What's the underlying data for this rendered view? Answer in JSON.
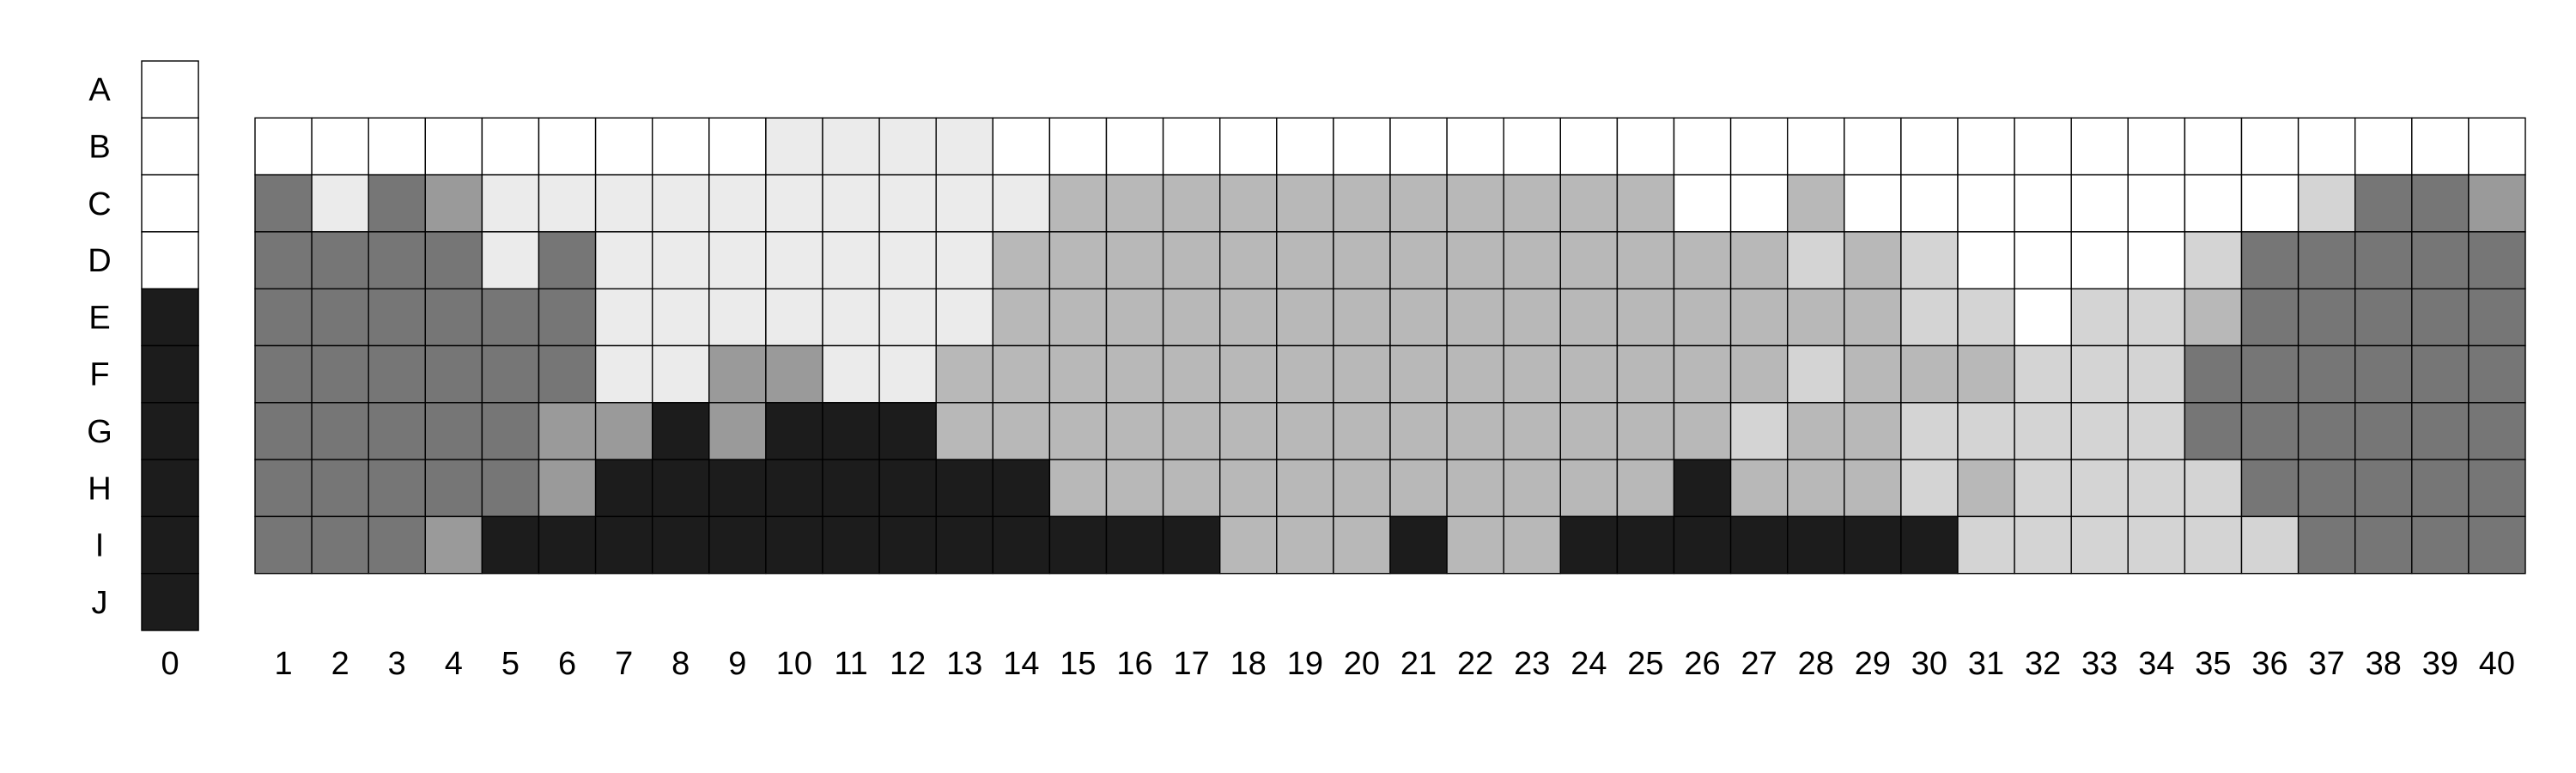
{
  "chart_data": {
    "type": "heatmap",
    "rows": [
      "A",
      "B",
      "C",
      "D",
      "E",
      "F",
      "G",
      "H",
      "I",
      "J"
    ],
    "columns": [
      "0",
      "1",
      "2",
      "3",
      "4",
      "5",
      "6",
      "7",
      "8",
      "9",
      "10",
      "11",
      "12",
      "13",
      "14",
      "15",
      "16",
      "17",
      "18",
      "19",
      "20",
      "21",
      "22",
      "23",
      "24",
      "25",
      "26",
      "27",
      "28",
      "29",
      "30",
      "31",
      "32",
      "33",
      "34",
      "35",
      "36",
      "37",
      "38",
      "39",
      "40"
    ],
    "palette": [
      "#ffffff",
      "#ebebeb",
      "#d4d4d4",
      "#b8b8b8",
      "#9a9a9a",
      "#767676",
      "#1c1c1c"
    ],
    "values": [
      [
        0,
        null,
        null,
        null,
        null,
        null,
        null,
        null,
        null,
        null,
        null,
        null,
        null,
        null,
        null,
        null,
        null,
        null,
        null,
        null,
        null,
        null,
        null,
        null,
        null,
        null,
        null,
        null,
        null,
        null,
        null,
        null,
        null,
        null,
        null,
        null,
        null,
        null,
        null,
        null,
        null
      ],
      [
        0,
        0,
        0,
        0,
        0,
        0,
        0,
        0,
        0,
        0,
        1,
        1,
        1,
        1,
        0,
        0,
        0,
        0,
        0,
        0,
        0,
        0,
        0,
        0,
        0,
        0,
        0,
        0,
        0,
        0,
        0,
        0,
        0,
        0,
        0,
        0,
        0,
        0,
        0,
        0,
        0
      ],
      [
        0,
        5,
        1,
        5,
        4,
        1,
        1,
        1,
        1,
        1,
        1,
        1,
        1,
        1,
        1,
        3,
        3,
        3,
        3,
        3,
        3,
        3,
        3,
        3,
        3,
        3,
        0,
        0,
        3,
        0,
        0,
        0,
        0,
        0,
        0,
        0,
        0,
        2,
        5,
        5,
        4
      ],
      [
        0,
        5,
        5,
        5,
        5,
        1,
        5,
        1,
        1,
        1,
        1,
        1,
        1,
        1,
        3,
        3,
        3,
        3,
        3,
        3,
        3,
        3,
        3,
        3,
        3,
        3,
        3,
        3,
        2,
        3,
        2,
        0,
        0,
        0,
        0,
        2,
        5,
        5,
        5,
        5,
        5
      ],
      [
        6,
        5,
        5,
        5,
        5,
        5,
        5,
        1,
        1,
        1,
        1,
        1,
        1,
        1,
        3,
        3,
        3,
        3,
        3,
        3,
        3,
        3,
        3,
        3,
        3,
        3,
        3,
        3,
        3,
        3,
        2,
        2,
        0,
        2,
        2,
        3,
        5,
        5,
        5,
        5,
        5
      ],
      [
        6,
        5,
        5,
        5,
        5,
        5,
        5,
        1,
        1,
        4,
        4,
        1,
        1,
        3,
        3,
        3,
        3,
        3,
        3,
        3,
        3,
        3,
        3,
        3,
        3,
        3,
        3,
        3,
        2,
        3,
        3,
        3,
        2,
        2,
        2,
        5,
        5,
        5,
        5,
        5,
        5
      ],
      [
        6,
        5,
        5,
        5,
        5,
        5,
        4,
        4,
        6,
        4,
        6,
        6,
        6,
        3,
        3,
        3,
        3,
        3,
        3,
        3,
        3,
        3,
        3,
        3,
        3,
        3,
        3,
        2,
        3,
        3,
        2,
        2,
        2,
        2,
        2,
        5,
        5,
        5,
        5,
        5,
        5
      ],
      [
        6,
        5,
        5,
        5,
        5,
        5,
        4,
        6,
        6,
        6,
        6,
        6,
        6,
        6,
        6,
        3,
        3,
        3,
        3,
        3,
        3,
        3,
        3,
        3,
        3,
        3,
        6,
        3,
        3,
        3,
        2,
        3,
        2,
        2,
        2,
        2,
        5,
        5,
        5,
        5,
        5
      ],
      [
        6,
        5,
        5,
        5,
        4,
        6,
        6,
        6,
        6,
        6,
        6,
        6,
        6,
        6,
        6,
        6,
        6,
        6,
        3,
        3,
        3,
        6,
        3,
        3,
        6,
        6,
        6,
        6,
        6,
        6,
        6,
        2,
        2,
        2,
        2,
        2,
        2,
        5,
        5,
        5,
        5
      ],
      [
        6,
        null,
        null,
        null,
        null,
        null,
        null,
        null,
        null,
        null,
        null,
        null,
        null,
        null,
        null,
        null,
        null,
        null,
        null,
        null,
        null,
        null,
        null,
        null,
        null,
        null,
        null,
        null,
        null,
        null,
        null,
        null,
        null,
        null,
        null,
        null,
        null,
        null,
        null,
        null,
        null
      ]
    ],
    "grid": true,
    "legend": "none"
  }
}
